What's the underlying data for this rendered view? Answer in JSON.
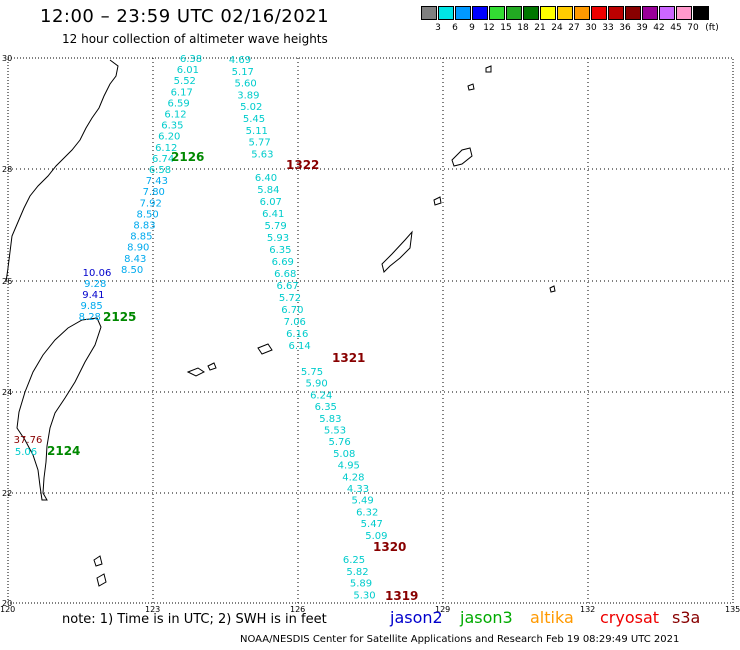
{
  "header": {
    "title": "12:00 – 23:59 UTC 02/16/2021",
    "subtitle": "12 hour collection of altimeter wave heights"
  },
  "legend": {
    "unit": "(ft)",
    "swatches": [
      {
        "color": "#808080",
        "label": "3"
      },
      {
        "color": "#00e5e5",
        "label": "6"
      },
      {
        "color": "#0099ff",
        "label": "9"
      },
      {
        "color": "#0000ff",
        "label": "12"
      },
      {
        "color": "#33dd33",
        "label": "15"
      },
      {
        "color": "#22aa22",
        "label": "18"
      },
      {
        "color": "#007700",
        "label": "21"
      },
      {
        "color": "#ffff00",
        "label": "24"
      },
      {
        "color": "#ffcc00",
        "label": "27"
      },
      {
        "color": "#ff9900",
        "label": "30"
      },
      {
        "color": "#ee0000",
        "label": "33"
      },
      {
        "color": "#bb0000",
        "label": "36"
      },
      {
        "color": "#880000",
        "label": "39"
      },
      {
        "color": "#990099",
        "label": "42"
      },
      {
        "color": "#cc66ff",
        "label": "45"
      },
      {
        "color": "#ff99cc",
        "label": "70"
      },
      {
        "color": "#000000",
        "label": ""
      }
    ]
  },
  "axes": {
    "lon_labels": [
      "120",
      "123",
      "126",
      "129",
      "132",
      "135"
    ],
    "lat_labels": [
      "30",
      "28",
      "26",
      "24",
      "22",
      "20"
    ]
  },
  "tracks": [
    {
      "name": "2126",
      "name_color": "#008800",
      "points": [
        {
          "v": "6.38",
          "c": "#00cccc"
        },
        {
          "v": "6.01",
          "c": "#00cccc"
        },
        {
          "v": "5.52",
          "c": "#00cccc"
        },
        {
          "v": "6.17",
          "c": "#00cccc"
        },
        {
          "v": "6.59",
          "c": "#00cccc"
        },
        {
          "v": "6.12",
          "c": "#00cccc"
        },
        {
          "v": "6.35",
          "c": "#00cccc"
        },
        {
          "v": "6.20",
          "c": "#00cccc"
        },
        {
          "v": "6.12",
          "c": "#00cccc"
        },
        {
          "v": "6.74",
          "c": "#00cccc"
        },
        {
          "v": "6.58",
          "c": "#00cccc"
        },
        {
          "v": "7.43",
          "c": "#00aaee"
        },
        {
          "v": "7.80",
          "c": "#00aaee"
        },
        {
          "v": "7.92",
          "c": "#00aaee"
        },
        {
          "v": "8.50",
          "c": "#00aaee"
        },
        {
          "v": "8.83",
          "c": "#00aaee"
        },
        {
          "v": "8.85",
          "c": "#00aaee"
        },
        {
          "v": "8.90",
          "c": "#00aaee"
        },
        {
          "v": "8.43",
          "c": "#00aaee"
        },
        {
          "v": "8.50",
          "c": "#00aaee"
        }
      ]
    },
    {
      "name": "2125",
      "name_color": "#008800",
      "points": [
        {
          "v": "10.06",
          "c": "#0000cc"
        },
        {
          "v": "9.28",
          "c": "#00aaee"
        },
        {
          "v": "9.41",
          "c": "#0000cc"
        },
        {
          "v": "9.85",
          "c": "#00aaee"
        },
        {
          "v": "8.28",
          "c": "#00aaee"
        }
      ]
    },
    {
      "name": "2124",
      "name_color": "#008800",
      "points": [
        {
          "v": "37.76",
          "c": "#880000"
        },
        {
          "v": "5.06",
          "c": "#00cccc"
        }
      ]
    },
    {
      "name": "1322",
      "name_color": "#880000",
      "points": [
        {
          "v": "4.69",
          "c": "#00cccc"
        },
        {
          "v": "5.17",
          "c": "#00cccc"
        },
        {
          "v": "5.60",
          "c": "#00cccc"
        },
        {
          "v": "3.89",
          "c": "#00cccc"
        },
        {
          "v": "5.02",
          "c": "#00cccc"
        },
        {
          "v": "5.45",
          "c": "#00cccc"
        },
        {
          "v": "5.11",
          "c": "#00cccc"
        },
        {
          "v": "5.77",
          "c": "#00cccc"
        },
        {
          "v": "5.63",
          "c": "#00cccc"
        }
      ]
    },
    {
      "name": "1321",
      "name_color": "#880000",
      "points": [
        {
          "v": "6.40",
          "c": "#00cccc"
        },
        {
          "v": "5.84",
          "c": "#00cccc"
        },
        {
          "v": "6.07",
          "c": "#00cccc"
        },
        {
          "v": "6.41",
          "c": "#00cccc"
        },
        {
          "v": "5.79",
          "c": "#00cccc"
        },
        {
          "v": "5.93",
          "c": "#00cccc"
        },
        {
          "v": "6.35",
          "c": "#00cccc"
        },
        {
          "v": "6.69",
          "c": "#00cccc"
        },
        {
          "v": "6.68",
          "c": "#00cccc"
        },
        {
          "v": "6.67",
          "c": "#00cccc"
        },
        {
          "v": "5.72",
          "c": "#00cccc"
        },
        {
          "v": "6.70",
          "c": "#00cccc"
        },
        {
          "v": "7.06",
          "c": "#00cccc"
        },
        {
          "v": "6.16",
          "c": "#00cccc"
        },
        {
          "v": "6.14",
          "c": "#00cccc"
        }
      ]
    },
    {
      "name": "1320",
      "name_color": "#880000",
      "points": [
        {
          "v": "5.75",
          "c": "#00cccc"
        },
        {
          "v": "5.90",
          "c": "#00cccc"
        },
        {
          "v": "6.24",
          "c": "#00cccc"
        },
        {
          "v": "6.35",
          "c": "#00cccc"
        },
        {
          "v": "5.83",
          "c": "#00cccc"
        },
        {
          "v": "5.53",
          "c": "#00cccc"
        },
        {
          "v": "5.76",
          "c": "#00cccc"
        },
        {
          "v": "5.08",
          "c": "#00cccc"
        },
        {
          "v": "4.95",
          "c": "#00cccc"
        },
        {
          "v": "4.28",
          "c": "#00cccc"
        },
        {
          "v": "4.33",
          "c": "#00cccc"
        },
        {
          "v": "5.49",
          "c": "#00cccc"
        },
        {
          "v": "6.32",
          "c": "#00cccc"
        },
        {
          "v": "5.47",
          "c": "#00cccc"
        },
        {
          "v": "5.09",
          "c": "#00cccc"
        }
      ]
    },
    {
      "name": "1319",
      "name_color": "#880000",
      "points": [
        {
          "v": "6.25",
          "c": "#00cccc"
        },
        {
          "v": "5.82",
          "c": "#00cccc"
        },
        {
          "v": "5.89",
          "c": "#00cccc"
        },
        {
          "v": "5.30",
          "c": "#00cccc"
        }
      ]
    }
  ],
  "footer": {
    "note": "note:  1) Time is in UTC;  2) SWH is in feet",
    "credit": "NOAA/NESDIS Center for Satellite Applications and Research    Feb 19 08:29:49 UTC 2021",
    "satellites": [
      {
        "name": "jason2",
        "color": "#0000cc"
      },
      {
        "name": "jason3",
        "color": "#00aa00"
      },
      {
        "name": "altika",
        "color": "#ff9900"
      },
      {
        "name": "cryosat",
        "color": "#ee0000"
      },
      {
        "name": "s3a",
        "color": "#880000"
      }
    ]
  }
}
